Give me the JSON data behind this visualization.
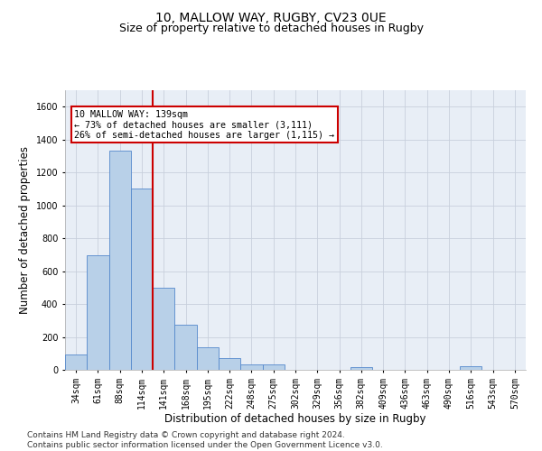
{
  "title1": "10, MALLOW WAY, RUGBY, CV23 0UE",
  "title2": "Size of property relative to detached houses in Rugby",
  "xlabel": "Distribution of detached houses by size in Rugby",
  "ylabel": "Number of detached properties",
  "footer": "Contains HM Land Registry data © Crown copyright and database right 2024.\nContains public sector information licensed under the Open Government Licence v3.0.",
  "bin_labels": [
    "34sqm",
    "61sqm",
    "88sqm",
    "114sqm",
    "141sqm",
    "168sqm",
    "195sqm",
    "222sqm",
    "248sqm",
    "275sqm",
    "302sqm",
    "329sqm",
    "356sqm",
    "382sqm",
    "409sqm",
    "436sqm",
    "463sqm",
    "490sqm",
    "516sqm",
    "543sqm",
    "570sqm"
  ],
  "bar_heights": [
    95,
    695,
    1330,
    1100,
    500,
    275,
    135,
    70,
    35,
    35,
    0,
    0,
    0,
    15,
    0,
    0,
    0,
    0,
    20,
    0,
    0
  ],
  "bar_color": "#b8d0e8",
  "bar_edge_color": "#5588cc",
  "highlight_bar_index": 3,
  "highlight_color": "#cc0000",
  "annotation_text": "10 MALLOW WAY: 139sqm\n← 73% of detached houses are smaller (3,111)\n26% of semi-detached houses are larger (1,115) →",
  "annotation_box_color": "#cc0000",
  "ylim": [
    0,
    1700
  ],
  "yticks": [
    0,
    200,
    400,
    600,
    800,
    1000,
    1200,
    1400,
    1600
  ],
  "grid_color": "#c8d0dc",
  "background_color": "#e8eef6",
  "title_fontsize": 10,
  "subtitle_fontsize": 9,
  "axis_label_fontsize": 8.5,
  "tick_fontsize": 7,
  "footer_fontsize": 6.5
}
